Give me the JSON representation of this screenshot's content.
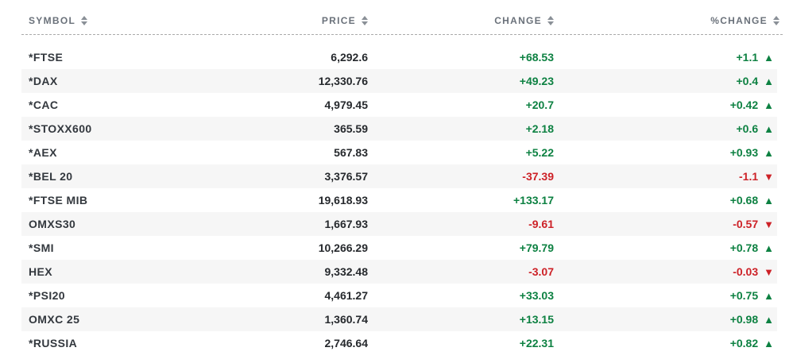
{
  "table": {
    "columns": [
      {
        "label": "SYMBOL"
      },
      {
        "label": "PRICE"
      },
      {
        "label": "CHANGE"
      },
      {
        "label": "%CHANGE"
      }
    ],
    "rows": [
      {
        "symbol": "*FTSE",
        "price": "6,292.6",
        "change": "+68.53",
        "pct_change": "+1.1",
        "direction": "up"
      },
      {
        "symbol": "*DAX",
        "price": "12,330.76",
        "change": "+49.23",
        "pct_change": "+0.4",
        "direction": "up"
      },
      {
        "symbol": "*CAC",
        "price": "4,979.45",
        "change": "+20.7",
        "pct_change": "+0.42",
        "direction": "up"
      },
      {
        "symbol": "*STOXX600",
        "price": "365.59",
        "change": "+2.18",
        "pct_change": "+0.6",
        "direction": "up"
      },
      {
        "symbol": "*AEX",
        "price": "567.83",
        "change": "+5.22",
        "pct_change": "+0.93",
        "direction": "up"
      },
      {
        "symbol": "*BEL 20",
        "price": "3,376.57",
        "change": "-37.39",
        "pct_change": "-1.1",
        "direction": "down"
      },
      {
        "symbol": "*FTSE MIB",
        "price": "19,618.93",
        "change": "+133.17",
        "pct_change": "+0.68",
        "direction": "up"
      },
      {
        "symbol": "OMXS30",
        "price": "1,667.93",
        "change": "-9.61",
        "pct_change": "-0.57",
        "direction": "down"
      },
      {
        "symbol": "*SMI",
        "price": "10,266.29",
        "change": "+79.79",
        "pct_change": "+0.78",
        "direction": "up"
      },
      {
        "symbol": "HEX",
        "price": "9,332.48",
        "change": "-3.07",
        "pct_change": "-0.03",
        "direction": "down"
      },
      {
        "symbol": "*PSI20",
        "price": "4,461.27",
        "change": "+33.03",
        "pct_change": "+0.75",
        "direction": "up"
      },
      {
        "symbol": "OMXC 25",
        "price": "1,360.74",
        "change": "+13.15",
        "pct_change": "+0.98",
        "direction": "up"
      },
      {
        "symbol": "*RUSSIA",
        "price": "2,746.64",
        "change": "+22.31",
        "pct_change": "+0.82",
        "direction": "up"
      }
    ]
  },
  "icons": {
    "sort": "stacked-up-down-triangles",
    "up_arrow": "▲",
    "down_arrow": "▼"
  },
  "colors": {
    "positive": "#0d8142",
    "negative": "#cd2127",
    "header_text": "#6a717a",
    "body_text": "#26292d",
    "alt_row_bg": "#f6f6f6",
    "dashed_border": "#a9a9a9"
  }
}
